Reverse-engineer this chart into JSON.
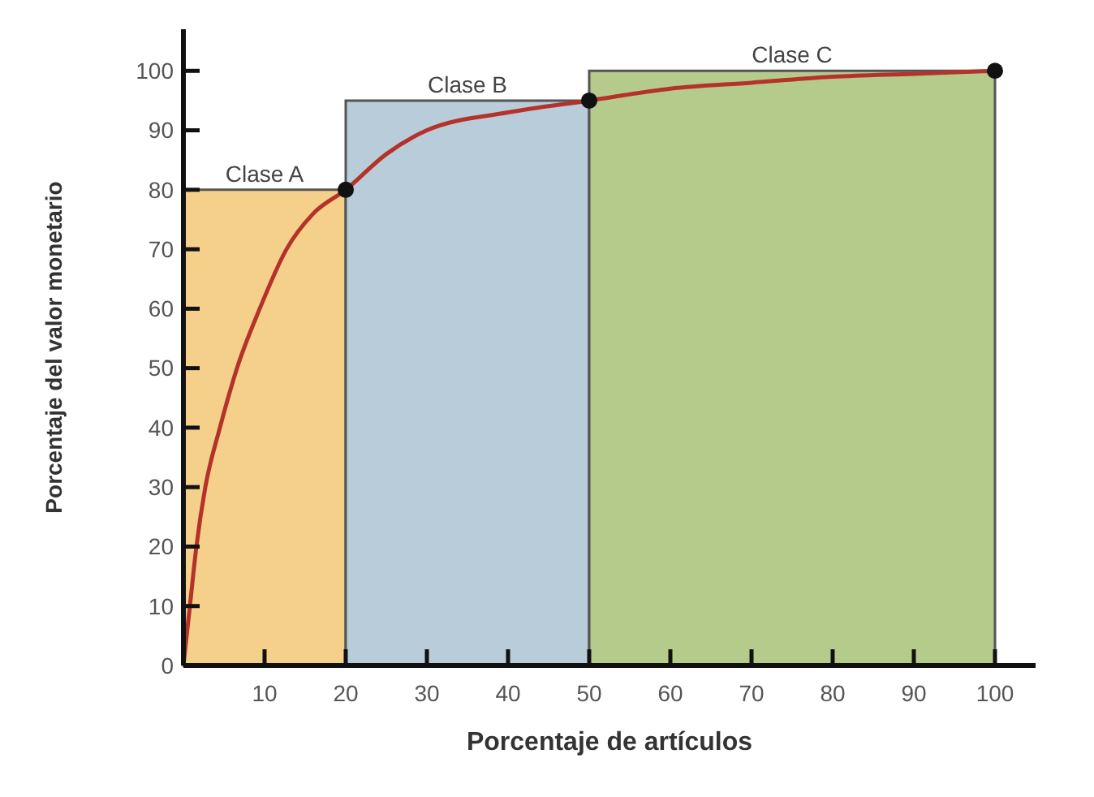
{
  "chart_data": {
    "type": "line",
    "xlabel": "Porcentaje de artículos",
    "ylabel": "Porcentaje del valor monetario",
    "xlim": [
      0,
      105
    ],
    "ylim": [
      0,
      107
    ],
    "xticks": [
      10,
      20,
      30,
      40,
      50,
      60,
      70,
      80,
      90,
      100
    ],
    "yticks": [
      0,
      10,
      20,
      30,
      40,
      50,
      60,
      70,
      80,
      90,
      100
    ],
    "grid": false,
    "legend": false,
    "series": [
      {
        "type": "area",
        "name": "Clase A",
        "color": "#f5d08a",
        "x": [
          0,
          20
        ],
        "values": [
          80,
          80
        ]
      },
      {
        "type": "area",
        "name": "Clase B",
        "color": "#b8cdd9",
        "x": [
          20,
          50
        ],
        "values": [
          95,
          95
        ]
      },
      {
        "type": "area",
        "name": "Clase C",
        "color": "#b5cb8c",
        "x": [
          50,
          100
        ],
        "values": [
          100,
          100
        ]
      },
      {
        "color": "#b5322a",
        "marker": "none",
        "x": [
          0,
          0.8,
          1.6,
          2.7,
          4.5,
          6.6,
          9.4,
          12.7,
          16,
          20,
          25,
          30,
          40,
          50,
          60,
          70,
          80,
          90,
          100
        ],
        "values": [
          0,
          10,
          20,
          30,
          40,
          50,
          60,
          70,
          76,
          80,
          86,
          90,
          93,
          95,
          97,
          98,
          99,
          99.5,
          100
        ]
      },
      {
        "type": "scatter",
        "color": "#111111",
        "marker": "circle",
        "x": [
          20,
          50,
          100
        ],
        "values": [
          80,
          95,
          100
        ]
      }
    ]
  }
}
